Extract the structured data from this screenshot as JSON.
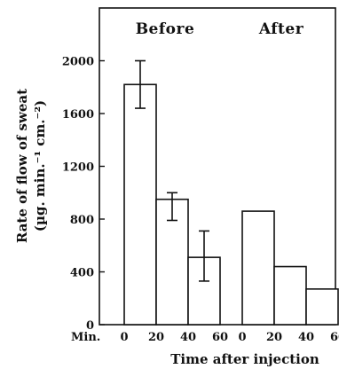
{
  "chart_data": {
    "type": "bar",
    "xlabel": "Time after injection",
    "ylabel_line1": "Rate of flow of sweat",
    "ylabel_line2": "(µg. min.⁻¹ cm.⁻²)",
    "x_prefix_label": "Min.",
    "ylim": [
      0,
      2400
    ],
    "yticks": [
      0,
      400,
      800,
      1200,
      1600,
      2000
    ],
    "bin_edges": [
      0,
      20,
      40,
      60
    ],
    "xtick_labels": [
      "0",
      "20",
      "40",
      "60"
    ],
    "panels": [
      {
        "label": "Before",
        "values": [
          1820,
          950,
          510
        ],
        "errors": [
          {
            "low": 1640,
            "high": 2000
          },
          {
            "low": 790,
            "high": 1000
          },
          {
            "low": 330,
            "high": 710
          }
        ]
      },
      {
        "label": "After",
        "values": [
          860,
          440,
          270
        ],
        "errors": []
      }
    ]
  }
}
